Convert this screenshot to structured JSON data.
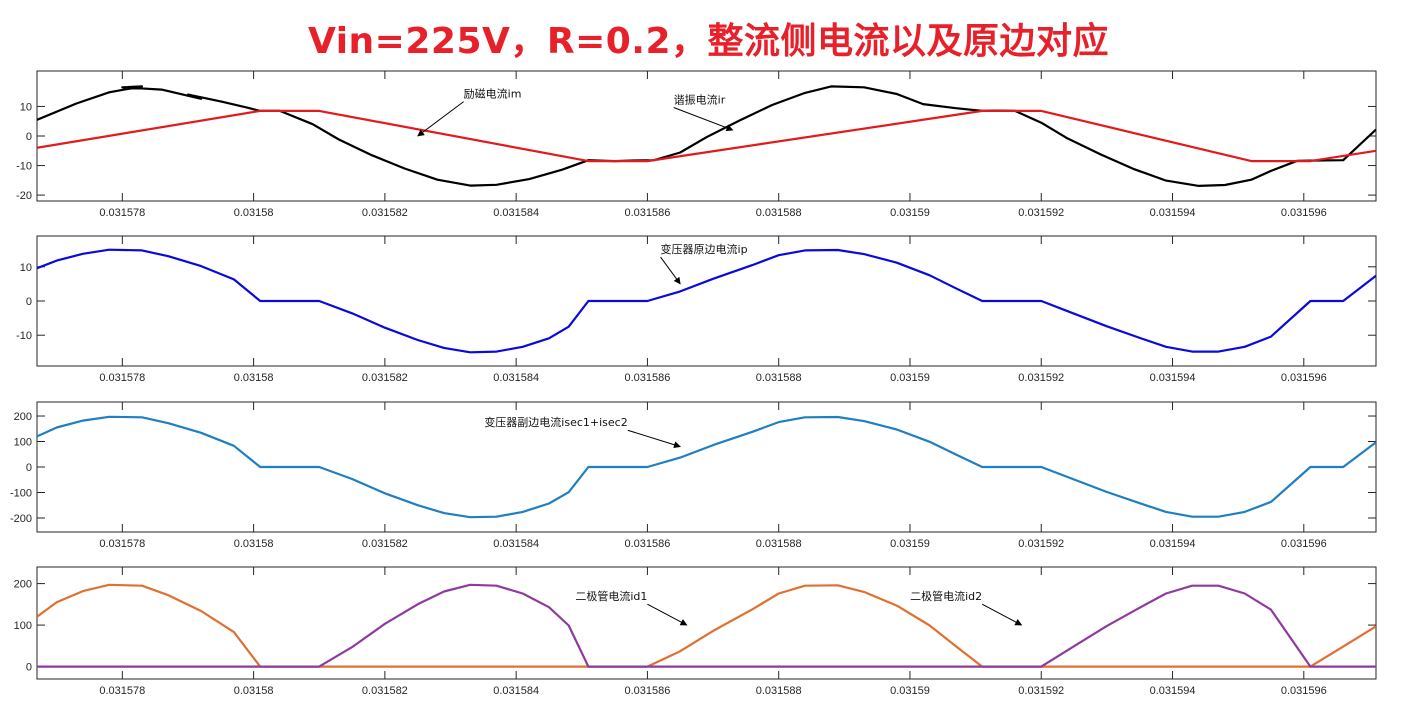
{
  "title": "Vin=225V，R=0.2，整流侧电流以及原边对应",
  "colors": {
    "title": "#e8202a",
    "black": "#000000",
    "red": "#e31a1c",
    "blue": "#0a0adc",
    "steel_blue": "#1f7fc0",
    "orange": "#e07030",
    "purple": "#8e3a9e"
  },
  "chart_data": [
    {
      "type": "line",
      "xlim": [
        0.0315767,
        0.0315971
      ],
      "ylim": [
        -22,
        22
      ],
      "xticks": [
        0.031578,
        0.03158,
        0.031582,
        0.031584,
        0.031586,
        0.031588,
        0.03159,
        0.031592,
        0.031594,
        0.031596
      ],
      "xtick_labels": [
        "0.031578",
        "0.03158",
        "0.031582",
        "0.031584",
        "0.031586",
        "0.031588",
        "0.03159",
        "0.031592",
        "0.031594",
        "0.031596"
      ],
      "yticks": [
        -20,
        -10,
        0,
        10
      ],
      "ytick_labels": [
        "-20",
        "-10",
        "0",
        "10"
      ],
      "grid": false,
      "series": [
        {
          "color": "#000000",
          "x": [
            0.0315767,
            0.0315773,
            0.0315778,
            0.0315783,
            0.031578,
            0.0315786,
            0.0315792,
            0.031579,
            0.0315795,
            0.0315799,
            0.0315801,
            0.0315804,
            0.0315809,
            0.0315813,
            0.0315818,
            0.0315823,
            0.0315828,
            0.0315833,
            0.0315837,
            0.0315842,
            0.0315847,
            0.0315851,
            0.0315855,
            0.0315858,
            0.0315861,
            0.0315865,
            0.0315869,
            0.0315874,
            0.0315879,
            0.0315884,
            0.0315888,
            0.0315893,
            0.0315898,
            0.0315902,
            0.0315907,
            0.0315911,
            0.0315913,
            0.0315916,
            0.031592,
            0.0315924,
            0.0315929,
            0.0315934,
            0.0315939,
            0.0315944,
            0.0315948,
            0.0315952,
            0.0315955,
            0.0315959,
            0.0315962,
            0.0315966,
            0.0315971
          ],
          "y": [
            5.5,
            11,
            14.8,
            16.8,
            16.5,
            15.7,
            12.6,
            14,
            11.7,
            9.6,
            8.5,
            8.5,
            4,
            -1.2,
            -6.5,
            -11,
            -14.8,
            -16.8,
            -16.5,
            -14.6,
            -11.4,
            -8.2,
            -8.5,
            -8.3,
            -8.2,
            -5.6,
            -0.4,
            5.2,
            10.5,
            14.6,
            16.8,
            16.5,
            14.2,
            10.8,
            9.4,
            8.5,
            8.6,
            8.5,
            4.5,
            -0.8,
            -6.2,
            -11.1,
            -15.1,
            -16.9,
            -16.6,
            -14.8,
            -11.8,
            -8.4,
            -8.3,
            -8.2,
            2.2
          ]
        },
        {
          "color": "#e31a1c",
          "x": [
            0.0315767,
            0.0315801,
            0.031581,
            0.0315851,
            0.031586,
            0.0315911,
            0.031592,
            0.0315952,
            0.0315961,
            0.0315971
          ],
          "y": [
            -4,
            8.5,
            8.5,
            -8.5,
            -8.5,
            8.5,
            8.5,
            -8.5,
            -8.5,
            -5
          ]
        }
      ],
      "annotations": [
        {
          "text": "励磁电流im",
          "x": 0.0315832,
          "y": 13,
          "arrow_to": [
            0.0315825,
            0
          ]
        },
        {
          "text": "谐振电流ir",
          "x": 0.0315864,
          "y": 11,
          "arrow_to": [
            0.0315873,
            2
          ]
        }
      ]
    },
    {
      "type": "line",
      "xlim": [
        0.0315767,
        0.0315971
      ],
      "ylim": [
        -19,
        19
      ],
      "xticks": [
        0.031578,
        0.03158,
        0.031582,
        0.031584,
        0.031586,
        0.031588,
        0.03159,
        0.031592,
        0.031594,
        0.031596
      ],
      "xtick_labels": [
        "0.031578",
        "0.03158",
        "0.031582",
        "0.031584",
        "0.031586",
        "0.031588",
        "0.03159",
        "0.031592",
        "0.031594",
        "0.031596"
      ],
      "yticks": [
        -10,
        0,
        10
      ],
      "ytick_labels": [
        "-10",
        "0",
        "10"
      ],
      "grid": false,
      "series": [
        {
          "color": "#0a0adc",
          "x": [
            0.0315767,
            0.031577,
            0.0315774,
            0.0315778,
            0.0315783,
            0.0315787,
            0.0315792,
            0.0315797,
            0.0315801,
            0.031581,
            0.0315815,
            0.031582,
            0.0315825,
            0.0315829,
            0.0315833,
            0.0315837,
            0.0315841,
            0.0315845,
            0.0315848,
            0.0315851,
            0.031586,
            0.0315865,
            0.031587,
            0.0315876,
            0.031588,
            0.0315884,
            0.0315889,
            0.0315893,
            0.0315898,
            0.0315903,
            0.0315907,
            0.0315911,
            0.031592,
            0.0315925,
            0.031593,
            0.0315935,
            0.0315939,
            0.0315943,
            0.0315947,
            0.0315951,
            0.0315955,
            0.0315961,
            0.0315966,
            0.0315971
          ],
          "y": [
            9.6,
            11.8,
            13.8,
            15,
            14.8,
            13.1,
            10.2,
            6.3,
            0,
            0,
            -3.6,
            -7.8,
            -11.4,
            -13.7,
            -15,
            -14.8,
            -13.4,
            -10.9,
            -7.5,
            0,
            0,
            2.8,
            6.5,
            10.5,
            13.4,
            14.8,
            14.9,
            13.7,
            11.2,
            7.5,
            3.7,
            0,
            0,
            -3.7,
            -7.4,
            -10.8,
            -13.4,
            -14.8,
            -14.8,
            -13.4,
            -10.4,
            0,
            0,
            7.4
          ]
        }
      ],
      "annotations": [
        {
          "text": "变压器原边电流ip",
          "x": 0.0315862,
          "y": 14,
          "arrow_to": [
            0.0315865,
            5
          ]
        }
      ]
    },
    {
      "type": "line",
      "xlim": [
        0.0315767,
        0.0315971
      ],
      "ylim": [
        -255,
        255
      ],
      "xticks": [
        0.031578,
        0.03158,
        0.031582,
        0.031584,
        0.031586,
        0.031588,
        0.03159,
        0.031592,
        0.031594,
        0.031596
      ],
      "xtick_labels": [
        "0.031578",
        "0.03158",
        "0.031582",
        "0.031584",
        "0.031586",
        "0.031588",
        "0.03159",
        "0.031592",
        "0.031594",
        "0.031596"
      ],
      "yticks": [
        -200,
        -100,
        0,
        100,
        200
      ],
      "ytick_labels": [
        "-200",
        "-100",
        "0",
        "100",
        "200"
      ],
      "grid": false,
      "series": [
        {
          "color": "#1f7fc0",
          "x": [
            0.0315767,
            0.031577,
            0.0315774,
            0.0315778,
            0.0315783,
            0.0315787,
            0.0315792,
            0.0315797,
            0.0315801,
            0.031581,
            0.0315815,
            0.031582,
            0.0315825,
            0.0315829,
            0.0315833,
            0.0315837,
            0.0315841,
            0.0315845,
            0.0315848,
            0.0315851,
            0.031586,
            0.0315865,
            0.031587,
            0.0315876,
            0.031588,
            0.0315884,
            0.0315889,
            0.0315893,
            0.0315898,
            0.0315903,
            0.0315907,
            0.0315911,
            0.031592,
            0.0315925,
            0.031593,
            0.0315935,
            0.0315939,
            0.0315943,
            0.0315947,
            0.0315951,
            0.0315955,
            0.0315961,
            0.0315966,
            0.0315971
          ],
          "y": [
            120,
            155,
            182,
            197,
            195,
            172,
            134,
            83,
            0,
            0,
            -47,
            -103,
            -150,
            -181,
            -197,
            -195,
            -176,
            -143,
            -99,
            0,
            0,
            37,
            86,
            138,
            176,
            195,
            196,
            180,
            147,
            99,
            49,
            0,
            0,
            -49,
            -98,
            -142,
            -176,
            -195,
            -195,
            -176,
            -137,
            0,
            0,
            97
          ]
        }
      ],
      "annotations": [
        {
          "text": "变压器副边电流isec1+isec2",
          "x": 0.0315857,
          "y": 160,
          "arrow_to": [
            0.0315865,
            80
          ]
        }
      ]
    },
    {
      "type": "line",
      "xlim": [
        0.0315767,
        0.0315971
      ],
      "ylim": [
        -30,
        240
      ],
      "xticks": [
        0.031578,
        0.03158,
        0.031582,
        0.031584,
        0.031586,
        0.031588,
        0.03159,
        0.031592,
        0.031594,
        0.031596
      ],
      "xtick_labels": [
        "0.031578",
        "0.03158",
        "0.031582",
        "0.031584",
        "0.031586",
        "0.031588",
        "0.03159",
        "0.031592",
        "0.031594",
        "0.031596"
      ],
      "yticks": [
        0,
        100,
        200
      ],
      "ytick_labels": [
        "0",
        "100",
        "200"
      ],
      "grid": false,
      "series": [
        {
          "color": "#e07030",
          "x": [
            0.0315767,
            0.031577,
            0.0315774,
            0.0315778,
            0.0315783,
            0.0315787,
            0.0315792,
            0.0315797,
            0.0315801,
            0.031586,
            0.0315865,
            0.031587,
            0.0315876,
            0.031588,
            0.0315884,
            0.0315889,
            0.0315893,
            0.0315898,
            0.0315903,
            0.0315907,
            0.0315911,
            0.0315961,
            0.0315966,
            0.0315971
          ],
          "y": [
            120,
            155,
            182,
            197,
            195,
            172,
            134,
            83,
            0,
            0,
            37,
            86,
            138,
            176,
            195,
            196,
            180,
            147,
            99,
            49,
            0,
            0,
            48,
            97
          ]
        },
        {
          "color": "#8e3a9e",
          "x": [
            0.0315767,
            0.031581,
            0.0315815,
            0.031582,
            0.0315825,
            0.0315829,
            0.0315833,
            0.0315837,
            0.0315841,
            0.0315845,
            0.0315848,
            0.0315851,
            0.031592,
            0.0315925,
            0.031593,
            0.0315935,
            0.0315939,
            0.0315943,
            0.0315947,
            0.0315951,
            0.0315955,
            0.0315961,
            0.0315971
          ],
          "y": [
            0,
            0,
            47,
            103,
            150,
            181,
            197,
            195,
            176,
            143,
            99,
            0,
            0,
            49,
            98,
            142,
            176,
            195,
            195,
            176,
            137,
            0,
            0
          ]
        }
      ],
      "annotations": [
        {
          "text": "二极管电流id1",
          "x": 0.031586,
          "y": 160,
          "arrow_to": [
            0.0315866,
            100
          ]
        },
        {
          "text": "二极管电流id2",
          "x": 0.0315911,
          "y": 160,
          "arrow_to": [
            0.0315917,
            100
          ]
        }
      ]
    }
  ]
}
